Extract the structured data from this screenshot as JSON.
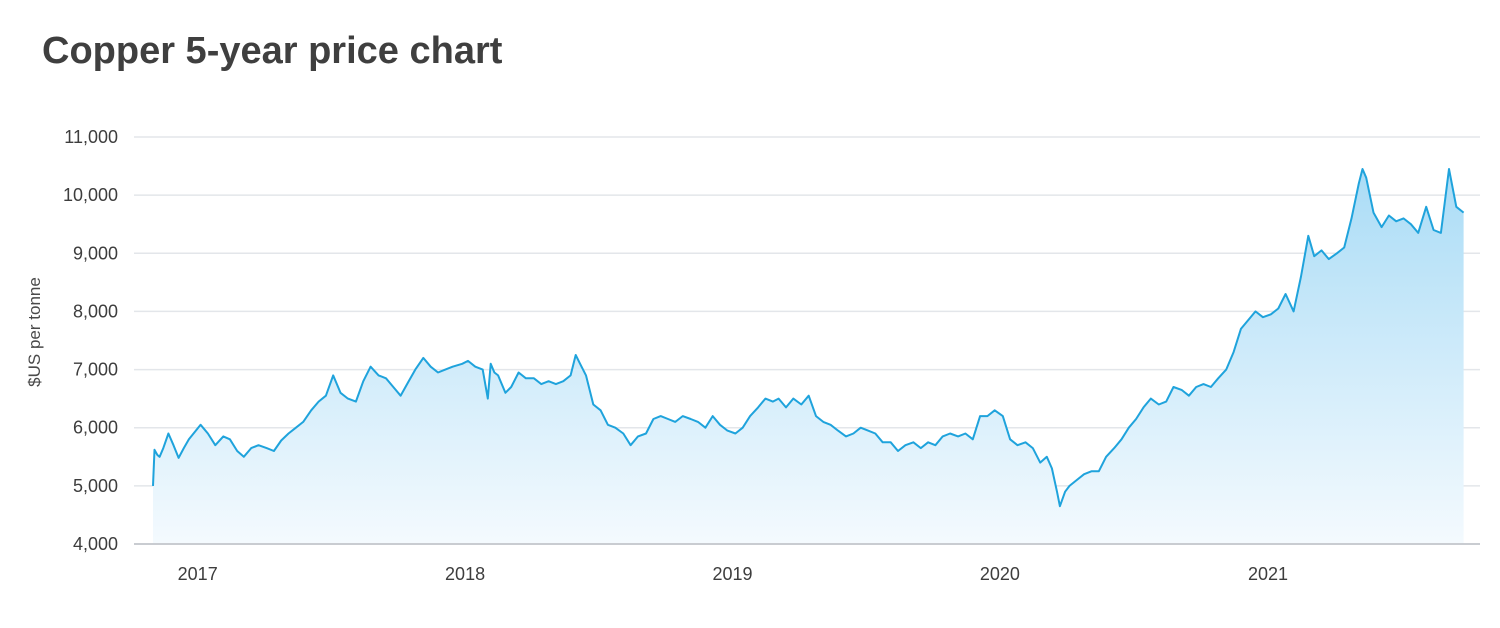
{
  "title": "Copper 5-year price chart",
  "chart_data": {
    "type": "area",
    "title": "Copper 5-year price chart",
    "xlabel": "",
    "ylabel": "$US per tonne",
    "ylim": [
      4000,
      11000
    ],
    "yticks": [
      4000,
      5000,
      6000,
      7000,
      8000,
      9000,
      10000,
      11000
    ],
    "ytick_labels": [
      "4,000",
      "5,000",
      "6,000",
      "7,000",
      "8,000",
      "9,000",
      "10,000",
      "11,000"
    ],
    "xlim": [
      "2016-11-01",
      "2021-10-01"
    ],
    "xticks": [
      "2017-01-01",
      "2018-01-01",
      "2019-01-01",
      "2020-01-01",
      "2021-01-01"
    ],
    "xtick_labels": [
      "2017",
      "2018",
      "2019",
      "2020",
      "2021"
    ],
    "grid": true,
    "line_color": "#1fa3dc",
    "fill_color_top": "#aadcf6",
    "fill_color_bottom": "#f4fafe",
    "series": [
      {
        "x": [
          "2016-11-01",
          "2016-11-03",
          "2016-11-07",
          "2016-11-10",
          "2016-11-15",
          "2016-11-22",
          "2016-11-29",
          "2016-12-06",
          "2016-12-13",
          "2016-12-20",
          "2017-01-05",
          "2017-01-15",
          "2017-01-25",
          "2017-02-05",
          "2017-02-14",
          "2017-02-24",
          "2017-03-05",
          "2017-03-15",
          "2017-03-25",
          "2017-04-05",
          "2017-04-15",
          "2017-04-25",
          "2017-05-05",
          "2017-05-15",
          "2017-05-25",
          "2017-06-05",
          "2017-06-15",
          "2017-06-25",
          "2017-07-05",
          "2017-07-15",
          "2017-07-25",
          "2017-08-05",
          "2017-08-15",
          "2017-08-25",
          "2017-09-05",
          "2017-09-15",
          "2017-09-25",
          "2017-10-05",
          "2017-10-16",
          "2017-10-25",
          "2017-11-05",
          "2017-11-15",
          "2017-11-25",
          "2017-12-05",
          "2017-12-15",
          "2017-12-28",
          "2018-01-05",
          "2018-01-15",
          "2018-01-25",
          "2018-02-01",
          "2018-02-05",
          "2018-02-10",
          "2018-02-15",
          "2018-02-25",
          "2018-03-05",
          "2018-03-15",
          "2018-03-25",
          "2018-04-05",
          "2018-04-15",
          "2018-04-25",
          "2018-05-05",
          "2018-05-15",
          "2018-05-25",
          "2018-06-01",
          "2018-06-07",
          "2018-06-15",
          "2018-06-25",
          "2018-07-05",
          "2018-07-15",
          "2018-07-25",
          "2018-08-05",
          "2018-08-15",
          "2018-08-25",
          "2018-09-05",
          "2018-09-15",
          "2018-09-25",
          "2018-10-05",
          "2018-10-15",
          "2018-10-25",
          "2018-11-05",
          "2018-11-15",
          "2018-11-25",
          "2018-12-05",
          "2018-12-15",
          "2018-12-25",
          "2019-01-05",
          "2019-01-15",
          "2019-01-25",
          "2019-02-05",
          "2019-02-15",
          "2019-02-25",
          "2019-03-05",
          "2019-03-15",
          "2019-03-25",
          "2019-04-05",
          "2019-04-15",
          "2019-04-25",
          "2019-05-05",
          "2019-05-15",
          "2019-05-25",
          "2019-06-05",
          "2019-06-15",
          "2019-06-25",
          "2019-07-05",
          "2019-07-15",
          "2019-07-25",
          "2019-08-05",
          "2019-08-15",
          "2019-08-25",
          "2019-09-05",
          "2019-09-15",
          "2019-09-25",
          "2019-10-05",
          "2019-10-15",
          "2019-10-25",
          "2019-11-05",
          "2019-11-15",
          "2019-11-25",
          "2019-12-05",
          "2019-12-15",
          "2019-12-25",
          "2020-01-05",
          "2020-01-15",
          "2020-01-25",
          "2020-02-05",
          "2020-02-15",
          "2020-02-25",
          "2020-03-05",
          "2020-03-12",
          "2020-03-19",
          "2020-03-23",
          "2020-03-30",
          "2020-04-05",
          "2020-04-15",
          "2020-04-25",
          "2020-05-05",
          "2020-05-15",
          "2020-05-25",
          "2020-06-05",
          "2020-06-15",
          "2020-06-25",
          "2020-07-05",
          "2020-07-15",
          "2020-07-25",
          "2020-08-05",
          "2020-08-15",
          "2020-08-25",
          "2020-09-05",
          "2020-09-15",
          "2020-09-25",
          "2020-10-05",
          "2020-10-15",
          "2020-10-25",
          "2020-11-05",
          "2020-11-15",
          "2020-11-25",
          "2020-12-05",
          "2020-12-15",
          "2020-12-25",
          "2021-01-05",
          "2021-01-15",
          "2021-01-25",
          "2021-02-05",
          "2021-02-15",
          "2021-02-25",
          "2021-03-05",
          "2021-03-15",
          "2021-03-25",
          "2021-04-05",
          "2021-04-15",
          "2021-04-25",
          "2021-05-05",
          "2021-05-10",
          "2021-05-15",
          "2021-05-25",
          "2021-06-05",
          "2021-06-15",
          "2021-06-25",
          "2021-07-05",
          "2021-07-15",
          "2021-07-25",
          "2021-08-05",
          "2021-08-15",
          "2021-08-25",
          "2021-09-05",
          "2021-09-15",
          "2021-09-25"
        ],
        "y": [
          5000,
          5620,
          5530,
          5500,
          5650,
          5900,
          5700,
          5480,
          5650,
          5800,
          6050,
          5900,
          5700,
          5850,
          5800,
          5600,
          5500,
          5650,
          5700,
          5650,
          5600,
          5780,
          5900,
          6000,
          6100,
          6300,
          6450,
          6550,
          6900,
          6600,
          6500,
          6450,
          6800,
          7050,
          6900,
          6850,
          6700,
          6550,
          6800,
          7000,
          7200,
          7050,
          6950,
          7000,
          7050,
          7100,
          7150,
          7050,
          7000,
          6500,
          7100,
          6950,
          6900,
          6600,
          6700,
          6950,
          6850,
          6850,
          6750,
          6800,
          6750,
          6800,
          6900,
          7250,
          7100,
          6900,
          6400,
          6300,
          6050,
          6000,
          5900,
          5700,
          5850,
          5900,
          6150,
          6200,
          6150,
          6100,
          6200,
          6150,
          6100,
          6000,
          6200,
          6050,
          5950,
          5900,
          6000,
          6200,
          6350,
          6500,
          6450,
          6500,
          6350,
          6500,
          6400,
          6550,
          6200,
          6100,
          6050,
          5950,
          5850,
          5900,
          6000,
          5950,
          5900,
          5750,
          5750,
          5600,
          5700,
          5750,
          5650,
          5750,
          5700,
          5850,
          5900,
          5850,
          5900,
          5800,
          6200,
          6200,
          6300,
          6200,
          5800,
          5700,
          5750,
          5650,
          5400,
          5500,
          5300,
          4900,
          4650,
          4900,
          5000,
          5100,
          5200,
          5250,
          5250,
          5500,
          5650,
          5800,
          6000,
          6150,
          6350,
          6500,
          6400,
          6450,
          6700,
          6650,
          6550,
          6700,
          6750,
          6700,
          6850,
          7000,
          7300,
          7700,
          7850,
          8000,
          7900,
          7950,
          8050,
          8300,
          8000,
          8600,
          9300,
          8950,
          9050,
          8900,
          9000,
          9100,
          9600,
          10200,
          10450,
          10300,
          9700,
          9450,
          9650,
          9550,
          9600,
          9500,
          9350,
          9800,
          9400,
          9350,
          10450,
          9800,
          9700
        ]
      }
    ]
  }
}
